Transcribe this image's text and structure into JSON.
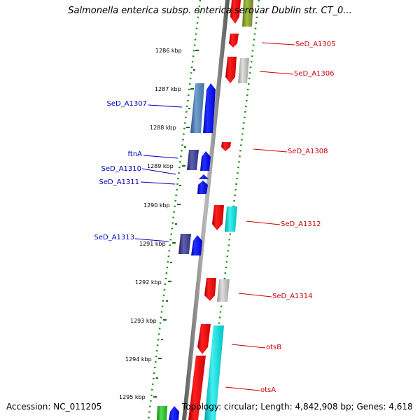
{
  "title": "Salmonella enterica subsp. enterica serovar Dublin str. CT_0...",
  "footer": {
    "accession": "Accession: NC_011205",
    "topology": "Topology: circular; Length: 4,842,908 bp; Genes: 4,618"
  },
  "colors": {
    "forward_label": "#0000bb",
    "reverse_label": "#cc0000",
    "ring_dots": "#1a8a1a",
    "ticks": "#1a6a1a"
  },
  "kbp_ticks": [
    "1286 kbp",
    "1287 kbp",
    "1288 kbp",
    "1289 kbp",
    "1290 kbp",
    "1291 kbp",
    "1292 kbp",
    "1293 kbp",
    "1294 kbp",
    "1295 kbp"
  ],
  "genes_forward": [
    {
      "label": "SeD_A1307",
      "color": "#1010ee"
    },
    {
      "label": "ftnA",
      "color": "#1010ee"
    },
    {
      "label": "SeD_A1310",
      "color": "#1010ee"
    },
    {
      "label": "SeD_A1311",
      "color": "#1010ee"
    },
    {
      "label": "SeD_A1313",
      "color": "#1010ee"
    }
  ],
  "genes_reverse": [
    {
      "label": "SeD_A1305",
      "color": "#ee1010"
    },
    {
      "label": "SeD_A1306",
      "color": "#ee1010"
    },
    {
      "label": "SeD_A1308",
      "color": "#ee1010"
    },
    {
      "label": "SeD_A1312",
      "color": "#ee1010"
    },
    {
      "label": "SeD_A1314",
      "color": "#ee1010"
    },
    {
      "label": "otsB",
      "color": "#ee1010"
    },
    {
      "label": "otsA",
      "color": "#ee1010"
    }
  ]
}
